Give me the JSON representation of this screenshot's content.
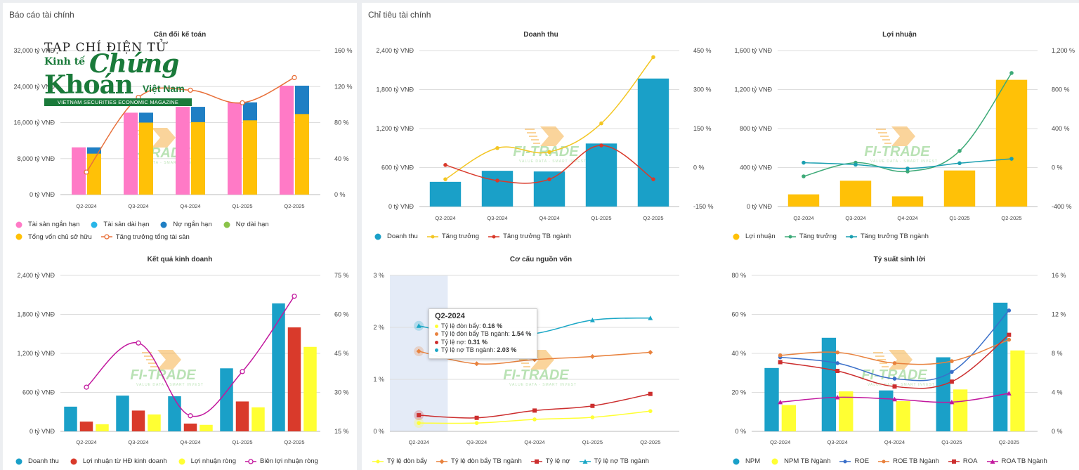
{
  "left_panel": {
    "title": "Báo cáo tài chính"
  },
  "right_panel": {
    "title": "Chỉ tiêu tài chính"
  },
  "watermark": {
    "brand": "FI-TRADE",
    "tagline": "VALUE DATA - SMART INVEST"
  },
  "magazine": {
    "top": "TẠP CHÍ ĐIỆN TỬ",
    "kinh_te": "Kinh tế",
    "chung": "Chứng",
    "khoan": "Khoán",
    "viet_nam": "Việt Nam",
    "bar": "VIETNAM SECURITIES ECONOMIC MAGAZINE"
  },
  "colors": {
    "pink": "#ff7ac6",
    "lightblue": "#29b6e8",
    "darkblue": "#1f7fc4",
    "green": "#8bc34a",
    "yellow": "#ffc107",
    "orange": "#e8703a",
    "teal": "#1aa0c8",
    "gold": "#f3c623",
    "red": "#d93a2b",
    "seagreen": "#3daa78",
    "brightyellow": "#ffff33",
    "purple": "#c2189e",
    "magenta": "#c0168f",
    "navy": "#3a6fc9",
    "salmon": "#e8823e",
    "crimson": "#cc2e2e",
    "cyan": "#1aa7c6"
  },
  "chart_data": [
    {
      "id": "balance",
      "type": "bar",
      "title": "Cân đối kế toán",
      "categories": [
        "Q2-2024",
        "Q3-2024",
        "Q4-2024",
        "Q1-2025",
        "Q2-2025"
      ],
      "left_axis": {
        "min": 0,
        "max": 32000,
        "ticks": [
          "0 tỷ VNĐ",
          "8,000 tỷ VNĐ",
          "16,000 tỷ VNĐ",
          "24,000 tỷ VNĐ",
          "32,000 tỷ VNĐ"
        ]
      },
      "right_axis": {
        "min": 0,
        "max": 160,
        "ticks": [
          "0 %",
          "40 %",
          "80 %",
          "120 %",
          "160 %"
        ]
      },
      "series": [
        {
          "name": "Tài sản ngắn hạn",
          "kind": "bar",
          "group": 0,
          "color": "#ff7ac6",
          "values": [
            10500,
            18200,
            19500,
            20500,
            24200
          ]
        },
        {
          "name": "Tài sản dài hạn",
          "kind": "bar",
          "group": 0,
          "color": "#29b6e8",
          "values": [
            0,
            0,
            0,
            0,
            0
          ]
        },
        {
          "name": "Nợ ngắn hạn",
          "kind": "bar",
          "group": 1,
          "color": "#1f7fc4",
          "values": [
            10500,
            18200,
            19500,
            20500,
            24200
          ]
        },
        {
          "name": "Nợ dài hạn",
          "kind": "bar",
          "group": 1,
          "color": "#8bc34a",
          "values": [
            0,
            0,
            0,
            0,
            0
          ]
        },
        {
          "name": "Tổng vốn chủ sở hữu",
          "kind": "bar",
          "group": 1,
          "color": "#ffc107",
          "values": [
            9100,
            16000,
            16100,
            16500,
            17900
          ]
        },
        {
          "name": "Tăng trưởng tổng tài sản",
          "kind": "line",
          "axis": "right",
          "color": "#e8703a",
          "marker": "hollow-circle",
          "values": [
            25,
            108,
            116,
            102,
            130
          ]
        }
      ]
    },
    {
      "id": "revenue",
      "type": "bar",
      "title": "Doanh thu",
      "categories": [
        "Q2-2024",
        "Q3-2024",
        "Q4-2024",
        "Q1-2025",
        "Q2-2025"
      ],
      "left_axis": {
        "min": 0,
        "max": 2400,
        "ticks": [
          "0 tỷ VNĐ",
          "600 tỷ VNĐ",
          "1,200 tỷ VNĐ",
          "1,800 tỷ VNĐ",
          "2,400 tỷ VNĐ"
        ]
      },
      "right_axis": {
        "min": -150,
        "max": 450,
        "ticks": [
          "-150 %",
          "0 %",
          "150 %",
          "300 %",
          "450 %"
        ]
      },
      "series": [
        {
          "name": "Doanh thu",
          "kind": "bar",
          "color": "#1aa0c8",
          "values": [
            380,
            550,
            540,
            970,
            1970
          ]
        },
        {
          "name": "Tăng trưởng",
          "kind": "line",
          "axis": "right",
          "color": "#f3c623",
          "values": [
            -45,
            75,
            60,
            170,
            425
          ]
        },
        {
          "name": "Tăng trưởng TB ngành",
          "kind": "line",
          "axis": "right",
          "color": "#d93a2b",
          "values": [
            10,
            -50,
            -45,
            85,
            -45
          ]
        }
      ]
    },
    {
      "id": "profit",
      "type": "bar",
      "title": "Lợi nhuận",
      "categories": [
        "Q2-2024",
        "Q3-2024",
        "Q4-2024",
        "Q1-2025",
        "Q2-2025"
      ],
      "left_axis": {
        "min": 0,
        "max": 1600,
        "ticks": [
          "0 tỷ VNĐ",
          "400 tỷ VNĐ",
          "800 tỷ VNĐ",
          "1,200 tỷ VNĐ",
          "1,600 tỷ VNĐ"
        ]
      },
      "right_axis": {
        "min": -400,
        "max": 1200,
        "ticks": [
          "-400 %",
          "0 %",
          "400 %",
          "800 %",
          "1,200 %"
        ]
      },
      "series": [
        {
          "name": "Lợi nhuận",
          "kind": "bar",
          "color": "#ffc107",
          "values": [
            125,
            265,
            105,
            370,
            1300
          ]
        },
        {
          "name": "Tăng trưởng",
          "kind": "line",
          "axis": "right",
          "color": "#3daa78",
          "values": [
            -90,
            50,
            -40,
            170,
            970
          ]
        },
        {
          "name": "Tăng trưởng TB ngành",
          "kind": "line",
          "axis": "right",
          "color": "#1a9fb0",
          "values": [
            50,
            30,
            -10,
            45,
            90
          ]
        }
      ]
    },
    {
      "id": "business",
      "type": "bar",
      "title": "Kết quả kinh doanh",
      "categories": [
        "Q2-2024",
        "Q3-2024",
        "Q4-2024",
        "Q1-2025",
        "Q2-2025"
      ],
      "left_axis": {
        "min": 0,
        "max": 2400,
        "ticks": [
          "0 tỷ VNĐ",
          "600 tỷ VNĐ",
          "1,200 tỷ VNĐ",
          "1,800 tỷ VNĐ",
          "2,400 tỷ VNĐ"
        ]
      },
      "right_axis": {
        "min": 15,
        "max": 75,
        "ticks": [
          "15 %",
          "30 %",
          "45 %",
          "60 %",
          "75 %"
        ]
      },
      "series": [
        {
          "name": "Doanh thu",
          "kind": "bar",
          "color": "#1aa0c8",
          "values": [
            380,
            550,
            540,
            970,
            1970
          ]
        },
        {
          "name": "Lợi nhuận từ HĐ kinh doanh",
          "kind": "bar",
          "color": "#d93a2b",
          "values": [
            150,
            320,
            120,
            460,
            1600
          ]
        },
        {
          "name": "Lợi nhuận ròng",
          "kind": "bar",
          "color": "#ffff33",
          "values": [
            110,
            260,
            100,
            370,
            1300
          ]
        },
        {
          "name": "Biên lợi nhuận ròng",
          "kind": "line",
          "axis": "right",
          "color": "#c2189e",
          "marker": "hollow-circle",
          "values": [
            32,
            49,
            21,
            38,
            67
          ]
        }
      ]
    },
    {
      "id": "capital",
      "type": "line",
      "title": "Cơ cấu nguồn vốn",
      "categories": [
        "Q2-2024",
        "Q3-2024",
        "Q4-2024",
        "Q1-2025",
        "Q2-2025"
      ],
      "left_axis": {
        "min": 0,
        "max": 3,
        "ticks": [
          "0 %",
          "1 %",
          "2 %",
          "3 %"
        ]
      },
      "series": [
        {
          "name": "Tỷ lệ đòn bẩy",
          "kind": "line",
          "color": "#ffff33",
          "marker": "circle",
          "values": [
            0.16,
            0.16,
            0.23,
            0.27,
            0.39
          ]
        },
        {
          "name": "Tỷ lệ đòn bẩy TB ngành",
          "kind": "line",
          "color": "#e8823e",
          "marker": "diamond",
          "values": [
            1.54,
            1.3,
            1.38,
            1.44,
            1.52
          ]
        },
        {
          "name": "Tỷ lệ nợ",
          "kind": "line",
          "color": "#cc2e2e",
          "marker": "square",
          "values": [
            0.31,
            0.26,
            0.4,
            0.49,
            0.72
          ]
        },
        {
          "name": "Tỷ lệ nợ TB ngành",
          "kind": "line",
          "color": "#1aa7c6",
          "marker": "triangle",
          "values": [
            2.03,
            1.83,
            1.88,
            2.14,
            2.18
          ]
        }
      ],
      "tooltip": {
        "title": "Q2-2024",
        "rows": [
          {
            "label": "Tỷ lệ đòn bẩy: ",
            "value": "0.16 %",
            "color": "#ffff33"
          },
          {
            "label": "Tỷ lệ đòn bẩy TB ngành: ",
            "value": "1.54 %",
            "color": "#e8823e"
          },
          {
            "label": "Tỷ lệ nợ: ",
            "value": "0.31 %",
            "color": "#cc2e2e"
          },
          {
            "label": "Tỷ lệ nợ TB ngành: ",
            "value": "2.03 %",
            "color": "#1aa7c6"
          }
        ]
      }
    },
    {
      "id": "profitability",
      "type": "bar",
      "title": "Tỷ suất sinh lời",
      "categories": [
        "Q2-2024",
        "Q3-2024",
        "Q4-2024",
        "Q1-2025",
        "Q2-2025"
      ],
      "left_axis": {
        "min": 0,
        "max": 80,
        "ticks": [
          "0 %",
          "20 %",
          "40 %",
          "60 %",
          "80 %"
        ]
      },
      "right_axis": {
        "min": 0,
        "max": 16,
        "ticks": [
          "0 %",
          "4 %",
          "8 %",
          "12 %",
          "16 %"
        ]
      },
      "series": [
        {
          "name": "NPM",
          "kind": "bar",
          "color": "#1aa0c8",
          "values": [
            32.5,
            48,
            21,
            38,
            66
          ]
        },
        {
          "name": "NPM TB Ngành",
          "kind": "bar",
          "color": "#ffff33",
          "values": [
            13.5,
            20.5,
            15.5,
            21.5,
            41.5
          ]
        },
        {
          "name": "ROE",
          "kind": "line",
          "axis": "right",
          "color": "#3a6fc9",
          "marker": "circle",
          "values": [
            7.6,
            7.0,
            5.4,
            6.1,
            12.4
          ]
        },
        {
          "name": "ROE TB Ngành",
          "kind": "line",
          "axis": "right",
          "color": "#e8823e",
          "marker": "circle",
          "values": [
            7.8,
            8.1,
            7.0,
            7.2,
            9.4
          ]
        },
        {
          "name": "ROA",
          "kind": "line",
          "axis": "right",
          "color": "#cc2e2e",
          "marker": "square",
          "values": [
            7.1,
            6.2,
            4.6,
            5.1,
            9.9
          ]
        },
        {
          "name": "ROA TB Ngành",
          "kind": "line",
          "axis": "right",
          "color": "#c2189e",
          "marker": "triangle",
          "values": [
            3.0,
            3.5,
            3.3,
            3.0,
            3.9
          ]
        }
      ]
    }
  ]
}
